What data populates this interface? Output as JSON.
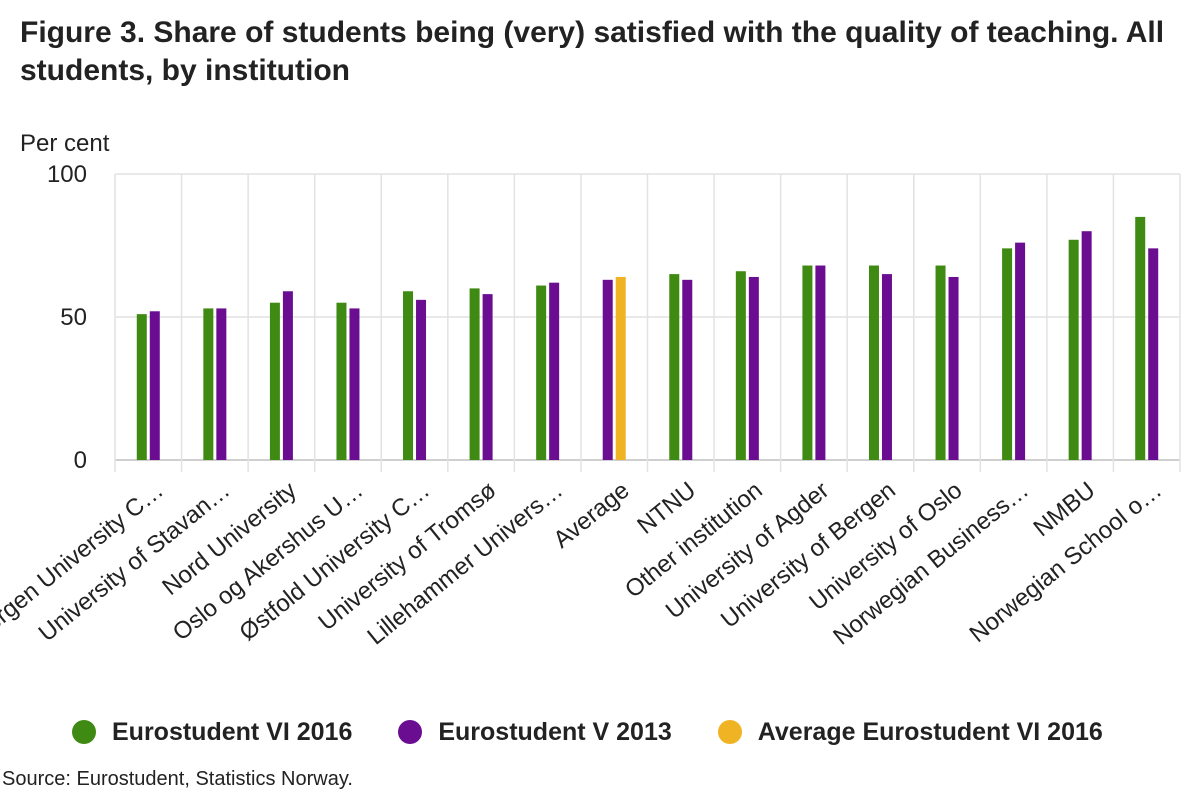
{
  "chart_data": {
    "type": "bar",
    "title": "Figure 3. Share of students being (very) satisfied with the quality of teaching. All students, by institution",
    "ylabel": "Per cent",
    "xlabel": "",
    "ylim": [
      0,
      100
    ],
    "yticks": [
      0,
      50,
      100
    ],
    "grid": true,
    "legend_position": "bottom",
    "categories": [
      "Bergen University C…",
      "University of Stavan…",
      "Nord University",
      "Oslo og Akershus U…",
      "Østfold University C…",
      "University of Tromsø",
      "Lillehammer Univers…",
      "Average",
      "NTNU",
      "Other institution",
      "University of Agder",
      "University of Bergen",
      "University of Oslo",
      "Norwegian Business…",
      "NMBU",
      "Norwegian School o…"
    ],
    "series": [
      {
        "name": "Eurostudent VI 2016",
        "color": "#3f8a12",
        "values": [
          51,
          53,
          55,
          55,
          59,
          60,
          61,
          null,
          65,
          66,
          68,
          68,
          68,
          74,
          77,
          85
        ]
      },
      {
        "name": "Eurostudent V 2013",
        "color": "#6a0d91",
        "values": [
          52,
          53,
          59,
          53,
          56,
          58,
          62,
          63,
          63,
          64,
          68,
          65,
          64,
          76,
          80,
          74
        ]
      },
      {
        "name": "Average Eurostudent VI 2016",
        "color": "#f0b323",
        "values": [
          null,
          null,
          null,
          null,
          null,
          null,
          null,
          64,
          null,
          null,
          null,
          null,
          null,
          null,
          null,
          null
        ]
      }
    ]
  },
  "source": "Source: Eurostudent, Statistics Norway."
}
